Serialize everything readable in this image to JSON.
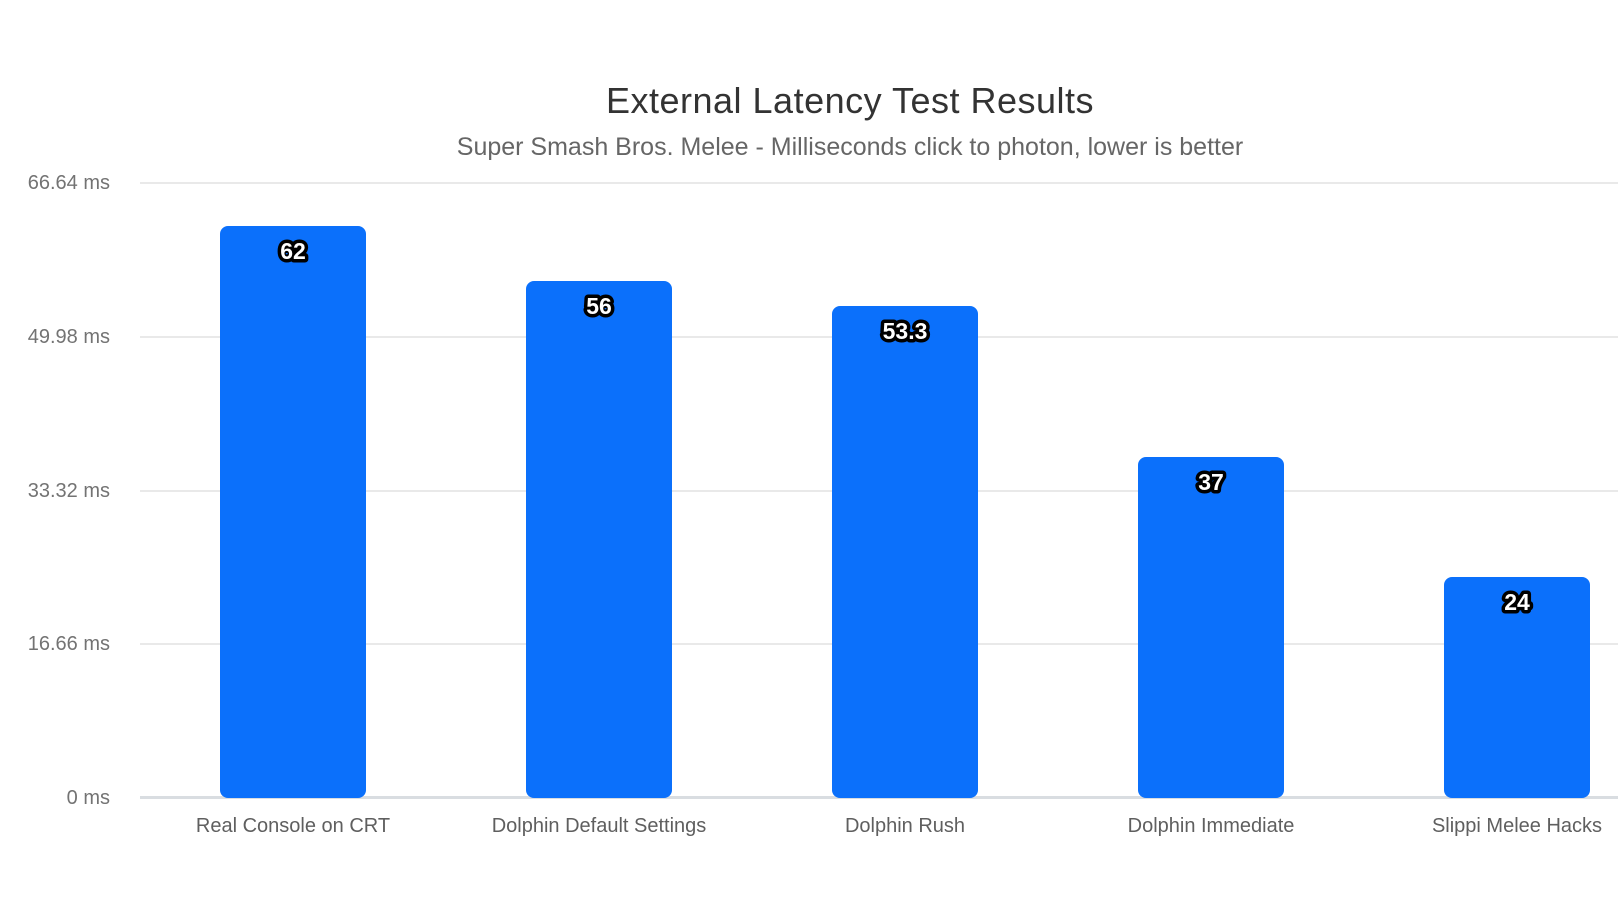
{
  "chart_data": {
    "type": "bar",
    "title": "External Latency Test Results",
    "subtitle": "Super Smash Bros. Melee - Milliseconds click to photon, lower is better",
    "categories": [
      "Real Console on CRT",
      "Dolphin Default Settings",
      "Dolphin Rush",
      "Dolphin Immediate",
      "Slippi Melee Hacks"
    ],
    "values": [
      62,
      56,
      53.3,
      37,
      24
    ],
    "value_labels": [
      "62",
      "56",
      "53.3",
      "37",
      "24"
    ],
    "y_ticks": [
      {
        "value": 0,
        "label": "0 ms"
      },
      {
        "value": 16.66,
        "label": "16.66 ms"
      },
      {
        "value": 33.32,
        "label": "33.32 ms"
      },
      {
        "value": 49.98,
        "label": "49.98 ms"
      },
      {
        "value": 66.64,
        "label": "66.64 ms"
      }
    ],
    "ylim": [
      0,
      66.64
    ],
    "xlabel": "",
    "ylabel": "",
    "grid": true,
    "legend": "none",
    "colors": {
      "background": "#ffffff",
      "bar": "#0b70fb",
      "value_label_fill": "#ffffff",
      "value_label_outline": "#000000",
      "title": "#333333",
      "subtitle": "#666666",
      "axis_tick_label": "#737373",
      "category_label": "#5f5f5f",
      "gridline": "#e9e9e9",
      "baseline": "#d9dde1"
    }
  }
}
